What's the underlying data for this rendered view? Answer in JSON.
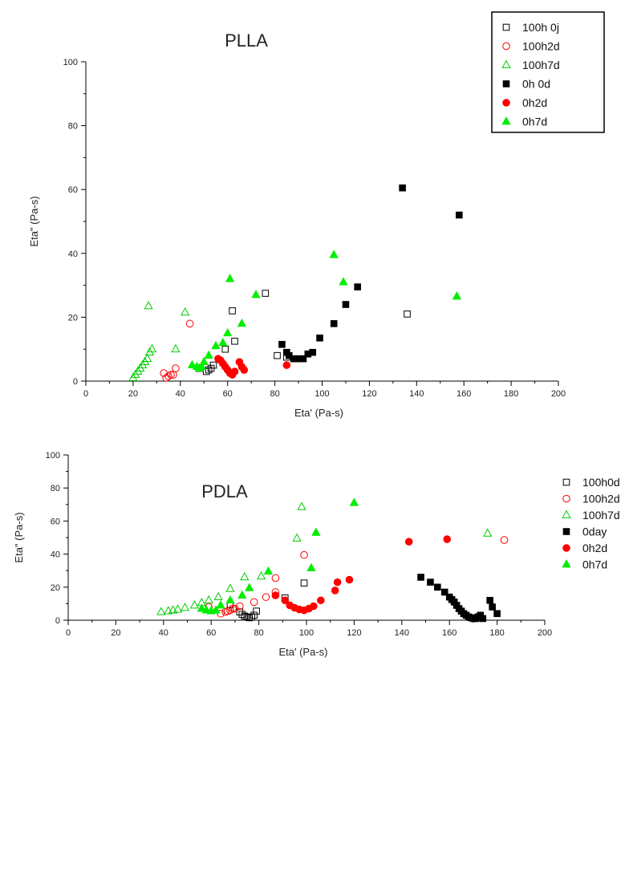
{
  "chart_data": [
    {
      "type": "scatter",
      "title": "PLLA",
      "xlabel": "Eta' (Pa-s)",
      "ylabel": "Eta\" (Pa-s)",
      "xlim": [
        0,
        200
      ],
      "ylim": [
        0,
        100
      ],
      "x_ticks": [
        0,
        20,
        40,
        60,
        80,
        100,
        120,
        140,
        160,
        180,
        200
      ],
      "y_ticks": [
        0,
        20,
        40,
        60,
        80,
        100
      ],
      "grid": false,
      "legend_position": "top-right",
      "series": [
        {
          "name": "100h 0j",
          "marker": "square",
          "filled": false,
          "color": "#000000",
          "x": [
            48,
            51,
            52,
            53,
            54,
            59,
            62,
            63,
            76,
            81,
            85,
            136
          ],
          "y": [
            4,
            3,
            3.5,
            4,
            5,
            10,
            22,
            12.5,
            27.5,
            8,
            7.5,
            21
          ]
        },
        {
          "name": "100h2d",
          "marker": "circle",
          "filled": false,
          "color": "#ff0000",
          "x": [
            33,
            34,
            35,
            36,
            37,
            38,
            44
          ],
          "y": [
            2.5,
            1,
            1.5,
            2,
            2,
            4,
            18
          ]
        },
        {
          "name": "100h7d",
          "marker": "triangle",
          "filled": false,
          "color": "#00cc00",
          "x": [
            20,
            21,
            22,
            23,
            24,
            25,
            26,
            27,
            28,
            26.5,
            38,
            42
          ],
          "y": [
            1,
            2,
            3,
            4,
            5,
            6,
            7,
            9,
            10,
            23.5,
            10,
            21.5
          ]
        },
        {
          "name": "0h 0d",
          "marker": "square",
          "filled": true,
          "color": "#000000",
          "x": [
            83,
            85,
            86,
            88,
            90,
            92,
            94,
            96,
            99,
            105,
            110,
            115,
            134,
            158
          ],
          "y": [
            11.5,
            9,
            8,
            7,
            7,
            7,
            8.5,
            9,
            13.5,
            18,
            24,
            29.5,
            60.5,
            52
          ]
        },
        {
          "name": "0h2d",
          "marker": "circle",
          "filled": true,
          "color": "#ff0000",
          "x": [
            56,
            57,
            58,
            59,
            60,
            61,
            62,
            63,
            65,
            66,
            67,
            85
          ],
          "y": [
            7,
            6.5,
            5.5,
            4.5,
            3.5,
            2.5,
            2,
            3,
            6,
            4.5,
            3.5,
            5
          ]
        },
        {
          "name": "0h7d",
          "marker": "triangle",
          "filled": true,
          "color": "#00ee00",
          "x": [
            45,
            47,
            48,
            49,
            50,
            52,
            55,
            58,
            60,
            61,
            66,
            72,
            105,
            109,
            157
          ],
          "y": [
            5,
            4.5,
            4,
            4.5,
            6,
            8,
            11,
            12,
            15,
            32,
            18,
            27,
            39.5,
            31,
            26.5
          ]
        }
      ]
    },
    {
      "type": "scatter",
      "title": "PDLA",
      "xlabel": "Eta' (Pa-s)",
      "ylabel": "Eta\" (Pa-s)",
      "xlim": [
        0,
        200
      ],
      "ylim": [
        0,
        100
      ],
      "x_ticks": [
        0,
        20,
        40,
        60,
        80,
        100,
        120,
        140,
        160,
        180,
        200
      ],
      "y_ticks": [
        0,
        20,
        40,
        60,
        80,
        100
      ],
      "grid": false,
      "legend_position": "top-right",
      "series": [
        {
          "name": "100h0d",
          "marker": "square",
          "filled": false,
          "color": "#000000",
          "x": [
            68,
            72,
            73,
            74,
            75,
            76,
            77,
            78,
            79,
            91,
            99
          ],
          "y": [
            9.5,
            5,
            3.5,
            2.5,
            2,
            1.5,
            2,
            3,
            5.5,
            13.5,
            22.5
          ]
        },
        {
          "name": "100h2d",
          "marker": "circle",
          "filled": false,
          "color": "#ff0000",
          "x": [
            59,
            64,
            66,
            67,
            68,
            69,
            70,
            72,
            78,
            83,
            87,
            87,
            99,
            183
          ],
          "y": [
            8,
            4,
            5,
            5.5,
            6,
            7,
            7,
            8.5,
            11,
            14,
            17,
            25.5,
            39.5,
            48.5
          ]
        },
        {
          "name": "100h7d",
          "marker": "triangle",
          "filled": false,
          "color": "#00cc00",
          "x": [
            39,
            42,
            44,
            46,
            49,
            53,
            56,
            59,
            63,
            68,
            74,
            81,
            96,
            98,
            176
          ],
          "y": [
            5,
            5.5,
            6,
            6.5,
            7.5,
            9,
            10.5,
            12,
            14,
            19,
            26,
            26.5,
            49.5,
            68.5,
            52.5
          ]
        },
        {
          "name": "0day",
          "marker": "square",
          "filled": true,
          "color": "#000000",
          "x": [
            148,
            152,
            155,
            158,
            160,
            161,
            162,
            163,
            164,
            165,
            166,
            167,
            168,
            169,
            170,
            171,
            172,
            173,
            174,
            177,
            178,
            180
          ],
          "y": [
            26,
            23,
            20,
            17,
            14,
            12.5,
            11,
            9,
            7,
            5.5,
            4,
            3,
            2,
            1.5,
            1,
            1,
            2,
            3,
            1,
            12,
            8,
            4
          ]
        },
        {
          "name": "0h2d",
          "marker": "circle",
          "filled": true,
          "color": "#ff0000",
          "x": [
            87,
            91,
            93,
            95,
            97,
            99,
            101,
            103,
            106,
            112,
            113,
            118,
            143,
            159
          ],
          "y": [
            15,
            12,
            9,
            7.5,
            6.5,
            6,
            7,
            8.5,
            12,
            18,
            23,
            24.5,
            47.5,
            49
          ]
        },
        {
          "name": "0h7d",
          "marker": "triangle",
          "filled": true,
          "color": "#00ee00",
          "x": [
            56,
            58,
            60,
            62,
            64,
            68,
            73,
            76,
            84,
            102,
            104,
            120
          ],
          "y": [
            7,
            6,
            5.5,
            6,
            9,
            12,
            15,
            19.5,
            29.5,
            31.5,
            53,
            71
          ]
        }
      ]
    }
  ]
}
